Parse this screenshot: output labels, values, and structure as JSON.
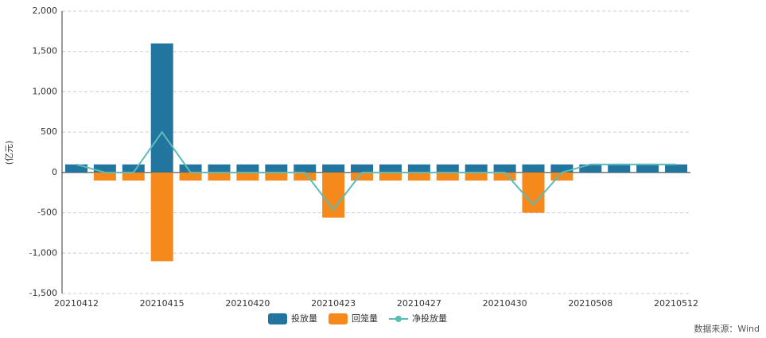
{
  "chart_data": {
    "type": "bar",
    "y_label": "(亿元)",
    "source": "数据来源：Wind",
    "categories": [
      "20210412",
      null,
      null,
      "20210415",
      null,
      null,
      "20210420",
      null,
      null,
      "20210423",
      null,
      null,
      "20210427",
      null,
      null,
      "20210430",
      null,
      null,
      "20210508",
      null,
      null,
      "20210512"
    ],
    "series": [
      {
        "name": "投放量",
        "color": "#21759f",
        "type": "bar",
        "values": [
          100,
          100,
          100,
          1600,
          100,
          100,
          100,
          100,
          100,
          100,
          100,
          100,
          100,
          100,
          100,
          100,
          100,
          100,
          100,
          100,
          100,
          100
        ]
      },
      {
        "name": "回笼量",
        "color": "#f5891c",
        "type": "bar",
        "values": [
          0,
          -100,
          -100,
          -1100,
          -100,
          -100,
          -100,
          -100,
          -100,
          -560,
          -100,
          -100,
          -100,
          -100,
          -100,
          -100,
          -500,
          -100,
          0,
          0,
          0,
          0
        ]
      },
      {
        "name": "净投放量",
        "color": "#5bbcb8",
        "type": "line",
        "values": [
          100,
          0,
          0,
          500,
          0,
          0,
          0,
          0,
          0,
          -460,
          0,
          0,
          0,
          0,
          0,
          0,
          -400,
          0,
          100,
          100,
          100,
          100
        ]
      }
    ],
    "ylim": [
      -1500,
      2000
    ],
    "yticks": [
      {
        "value": -1500,
        "label": "-1,500"
      },
      {
        "value": -1000,
        "label": "-1,000"
      },
      -500,
      0,
      500,
      {
        "value": 1000,
        "label": "1,000"
      },
      {
        "value": 1500,
        "label": "1,500"
      },
      {
        "value": 2000,
        "label": "2,000"
      }
    ],
    "grid": true,
    "legend": "bottom"
  }
}
